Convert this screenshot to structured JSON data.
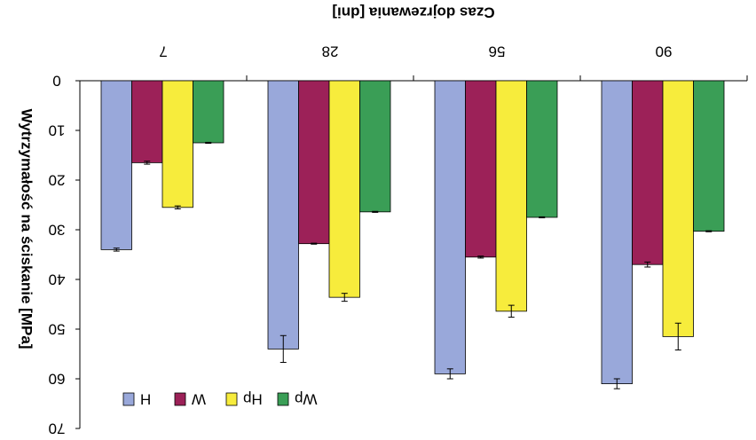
{
  "chart_data": {
    "type": "bar",
    "orientation": "mirrored (rendered upside-down and horizontally flipped)",
    "title": "",
    "xlabel": "Czas dojrzewania [dni]",
    "ylabel": "Wytrzymałość na ściskanie [MPa]",
    "ylim": [
      0,
      70
    ],
    "yticks": [
      0,
      10,
      20,
      30,
      40,
      50,
      60,
      70
    ],
    "grid": false,
    "legend_position": "bottom-left",
    "categories": [
      "7",
      "28",
      "56",
      "90"
    ],
    "series": [
      {
        "name": "H",
        "color": "#99A8DA",
        "values": [
          34.0,
          54.0,
          59.0,
          61.0
        ],
        "errors": [
          0.3,
          2.7,
          1.0,
          1.0
        ]
      },
      {
        "name": "W",
        "color": "#9C2158",
        "values": [
          16.5,
          32.8,
          35.5,
          37.0
        ],
        "errors": [
          0.3,
          0.1,
          0.2,
          0.5
        ]
      },
      {
        "name": "Hp",
        "color": "#F7EC3C",
        "values": [
          25.5,
          43.6,
          46.4,
          51.5
        ],
        "errors": [
          0.3,
          0.8,
          1.2,
          2.7
        ]
      },
      {
        "name": "Wp",
        "color": "#3A9E56",
        "values": [
          12.5,
          26.4,
          27.5,
          30.3
        ],
        "errors": [
          0.1,
          0.1,
          0.1,
          0.1
        ]
      }
    ]
  }
}
